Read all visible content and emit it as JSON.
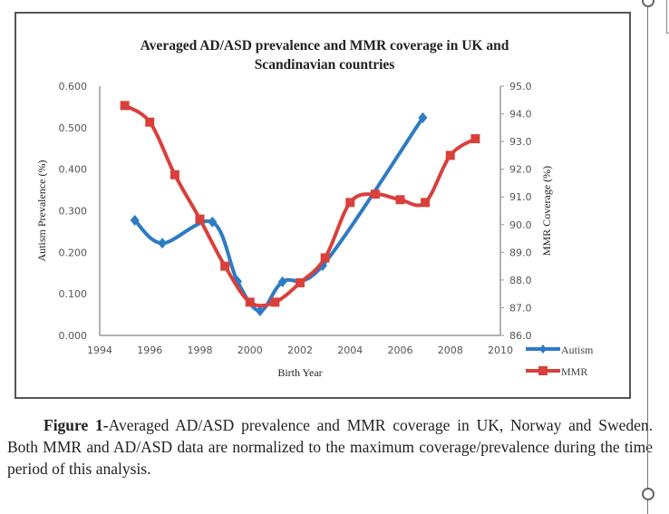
{
  "chart_data": {
    "type": "line",
    "title": "Averaged AD/ASD prevalence and MMR coverage in UK and Scandinavian countries",
    "title_lines": [
      "Averaged AD/ASD prevalence and MMR coverage in UK and",
      "Scandinavian countries"
    ],
    "xlabel": "Birth Year",
    "ylabel": "Autism Prevalence (%)",
    "y2label": "MMR Coverage (%)",
    "xlim": [
      1994,
      2010
    ],
    "ylim": [
      0,
      0.6
    ],
    "y2lim": [
      86.0,
      95.0
    ],
    "x_ticks": [
      "1994",
      "1996",
      "1998",
      "2000",
      "2002",
      "2004",
      "2006",
      "2008",
      "2010"
    ],
    "y_ticks": [
      "0.000",
      "0.100",
      "0.200",
      "0.300",
      "0.400",
      "0.500",
      "0.600"
    ],
    "y2_ticks": [
      "86.0",
      "87.0",
      "88.0",
      "89.0",
      "90.0",
      "91.0",
      "92.0",
      "93.0",
      "94.0",
      "95.0"
    ],
    "grid": false,
    "legend_position": "right",
    "series": [
      {
        "name": "Autism",
        "axis": "left",
        "color": "#2e7bc4",
        "marker": "diamond",
        "x": [
          1995.4,
          1996.5,
          1998.5,
          1999.5,
          2000.4,
          2001.3,
          2002.9,
          2006.9
        ],
        "values": [
          0.277,
          0.222,
          0.273,
          0.13,
          0.059,
          0.129,
          0.168,
          0.524
        ]
      },
      {
        "name": "MMR",
        "axis": "right",
        "color": "#d9403c",
        "marker": "square",
        "x": [
          1995,
          1996,
          1997,
          1998,
          1999,
          2000,
          2001,
          2002,
          2003,
          2004,
          2005,
          2006,
          2007,
          2008,
          2009
        ],
        "values": [
          94.3,
          93.7,
          91.8,
          90.2,
          88.5,
          87.2,
          87.2,
          87.9,
          88.8,
          90.8,
          91.1,
          90.9,
          90.8,
          92.5,
          93.1
        ]
      }
    ]
  },
  "caption": {
    "label": "Figure 1-",
    "text": "Averaged AD/ASD prevalence and MMR coverage in UK, Norway and Sweden. Both MMR and AD/ASD data are normalized to the maximum coverage/prevalence during the time period of this analysis."
  }
}
